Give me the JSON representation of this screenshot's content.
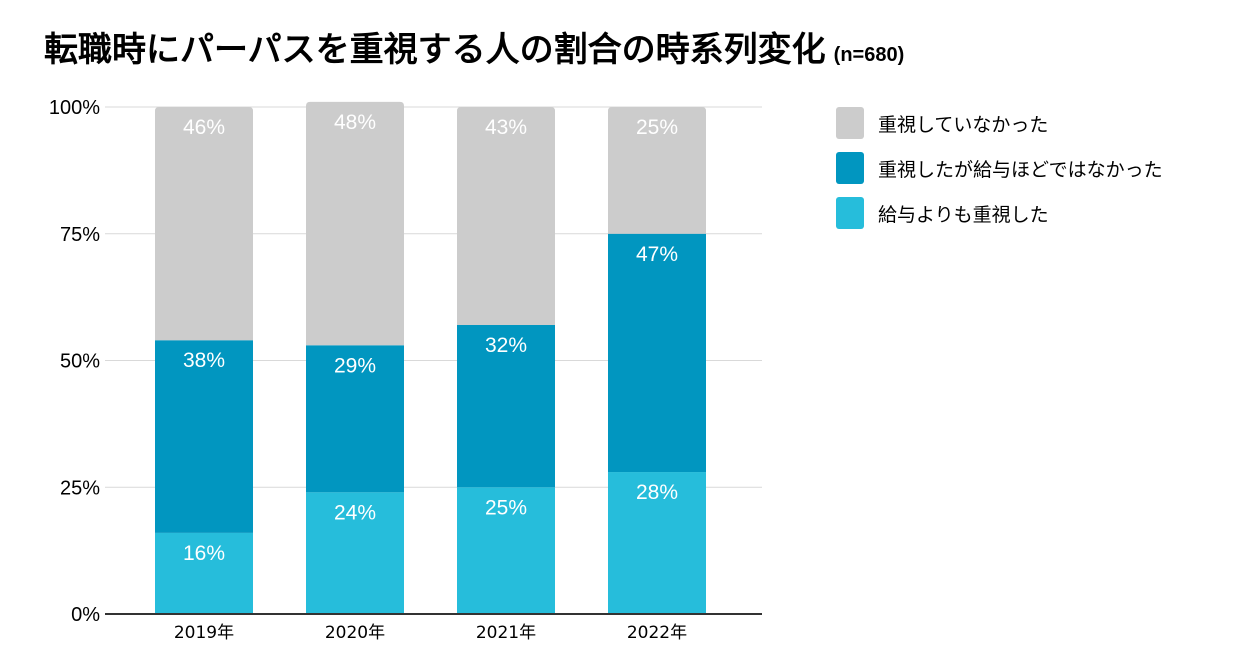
{
  "title": {
    "main": "転職時にパーパスを重視する人の割合の時系列変化",
    "sample": "(n=680)"
  },
  "colors": {
    "not_valued": "#cccccc",
    "valued_less_than_salary": "#0196c0",
    "valued_more_than_salary": "#26bddb",
    "axis": "#333333",
    "grid": "#d9d9d9"
  },
  "chart_data": {
    "type": "bar",
    "stacked": true,
    "title": "転職時にパーパスを重視する人の割合の時系列変化 (n=680)",
    "categories": [
      "2019年",
      "2020年",
      "2021年",
      "2022年"
    ],
    "series": [
      {
        "key": "valued_more_than_salary",
        "name": "給与よりも重視した",
        "values": [
          16,
          24,
          25,
          28
        ],
        "labels": [
          "16%",
          "24%",
          "25%",
          "28%"
        ]
      },
      {
        "key": "valued_less_than_salary",
        "name": "重視したが給与ほどではなかった",
        "values": [
          38,
          29,
          32,
          47
        ],
        "labels": [
          "38%",
          "29%",
          "32%",
          "47%"
        ]
      },
      {
        "key": "not_valued",
        "name": "重視していなかった",
        "values": [
          46,
          48,
          43,
          25
        ],
        "labels": [
          "46%",
          "48%",
          "43%",
          "25%"
        ]
      }
    ],
    "ylim": [
      0,
      100
    ],
    "yticks": [
      0,
      25,
      50,
      75,
      100
    ],
    "ytick_labels": [
      "0%",
      "25%",
      "50%",
      "75%",
      "100%"
    ],
    "grid": true,
    "legend_position": "right-top",
    "legend_order": [
      "not_valued",
      "valued_less_than_salary",
      "valued_more_than_salary"
    ],
    "xlabel": "",
    "ylabel": ""
  }
}
